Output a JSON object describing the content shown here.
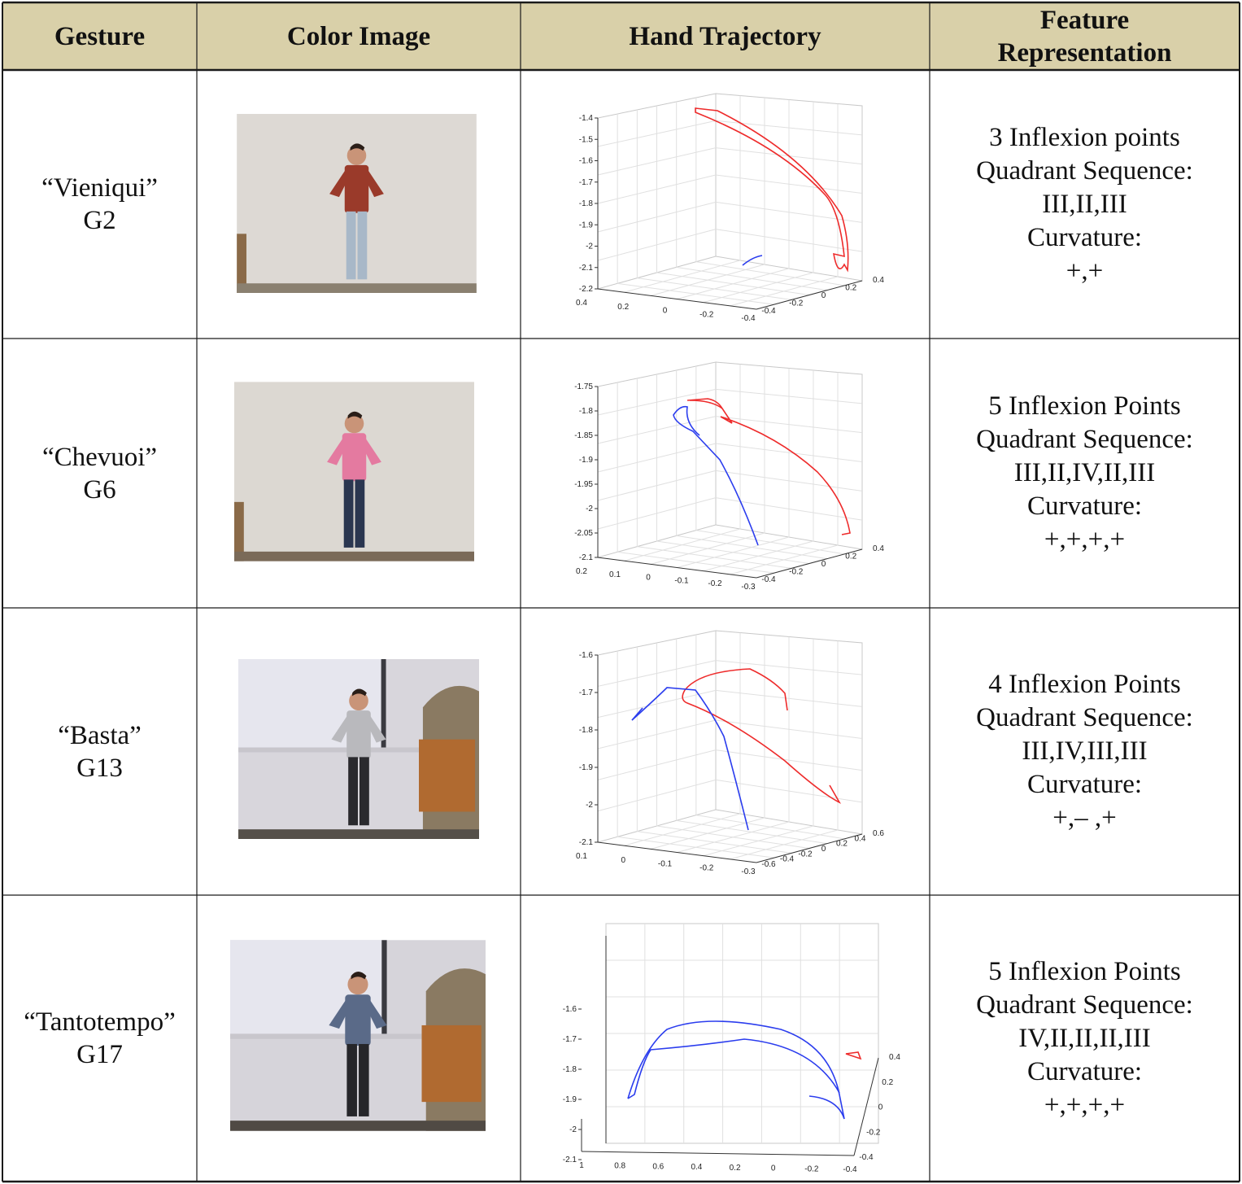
{
  "table": {
    "headers": [
      "Gesture",
      "Color Image",
      "Hand Trajectory",
      "Feature\nRepresentation"
    ],
    "rows": [
      {
        "gesture_name": "“Vieniqui”",
        "gesture_id": "G2",
        "features": [
          "3 Inflexion points",
          "Quadrant Sequence:",
          "III,II,III",
          "Curvature:",
          "+,+"
        ],
        "photo": {
          "wall": "#ddd9d4",
          "floor": "#8a8070",
          "shirt": "#9a3a2a",
          "pants": "#a8b8c8",
          "variant": "plain"
        },
        "trajectory": {
          "z_ticks": [
            "-1.4",
            "-1.5",
            "-1.6",
            "-1.7",
            "-1.8",
            "-1.9",
            "-2",
            "-2.1",
            "-2.2"
          ],
          "x_ticks": [
            "0.4",
            "0.2",
            "0",
            "-0.2",
            "-0.4"
          ],
          "y_ticks": [
            "-0.4",
            "-0.2",
            "0",
            "0.2",
            "0.4"
          ]
        }
      },
      {
        "gesture_name": "“Chevuoi”",
        "gesture_id": "G6",
        "features": [
          "5 Inflexion Points",
          "Quadrant Sequence:",
          "III,II,IV,II,III",
          "Curvature:",
          "+,+,+,+"
        ],
        "photo": {
          "wall": "#dcd8d2",
          "floor": "#7a6a58",
          "shirt": "#e47aa0",
          "pants": "#2a3650",
          "variant": "plain"
        },
        "trajectory": {
          "z_ticks": [
            "-1.75",
            "-1.8",
            "-1.85",
            "-1.9",
            "-1.95",
            "-2",
            "-2.05",
            "-2.1"
          ],
          "x_ticks": [
            "0.2",
            "0.1",
            "0",
            "-0.1",
            "-0.2",
            "-0.3"
          ],
          "y_ticks": [
            "-0.4",
            "-0.2",
            "0",
            "0.2",
            "0.4"
          ]
        }
      },
      {
        "gesture_name": "“Basta”",
        "gesture_id": "G13",
        "features": [
          "4 Inflexion Points",
          "Quadrant Sequence:",
          "III,IV,III,III",
          "Curvature:",
          "+,– ,+"
        ],
        "photo": {
          "wall": "#d8d6dc",
          "floor": "#555049",
          "shirt": "#b9b9bd",
          "pants": "#2a2a2e",
          "variant": "room"
        },
        "trajectory": {
          "z_ticks": [
            "-1.6",
            "-1.7",
            "-1.8",
            "-1.9",
            "-2",
            "-2.1"
          ],
          "x_ticks": [
            "0.1",
            "0",
            "-0.1",
            "-0.2",
            "-0.3"
          ],
          "y_ticks": [
            "-0.6",
            "-0.4",
            "-0.2",
            "0",
            "0.2",
            "0.4",
            "0.6"
          ]
        }
      },
      {
        "gesture_name": "“Tantotempo”",
        "gesture_id": "G17",
        "features": [
          "5 Inflexion Points",
          "Quadrant Sequence:",
          "IV,II,II,II,III",
          "Curvature:",
          "+,+,+,+"
        ],
        "photo": {
          "wall": "#d6d4da",
          "floor": "#504a44",
          "shirt": "#5a6a88",
          "pants": "#26262a",
          "variant": "room"
        },
        "trajectory": {
          "z_ticks": [
            "-1.6",
            "-1.7",
            "-1.8",
            "-1.9",
            "-2",
            "-2.1"
          ],
          "x_ticks": [
            "1",
            "0.8",
            "0.6",
            "0.4",
            "0.2",
            "0",
            "-0.2",
            "-0.4"
          ],
          "y_ticks": [
            "-0.4",
            "-0.2",
            "0",
            "0.2",
            "0.4"
          ]
        }
      }
    ]
  },
  "colors": {
    "header_bg": "#d9d0a9",
    "border": "#1a1a1a",
    "trajectory_hand_1": "#ee2b2b",
    "trajectory_hand_2": "#2b3dee"
  }
}
